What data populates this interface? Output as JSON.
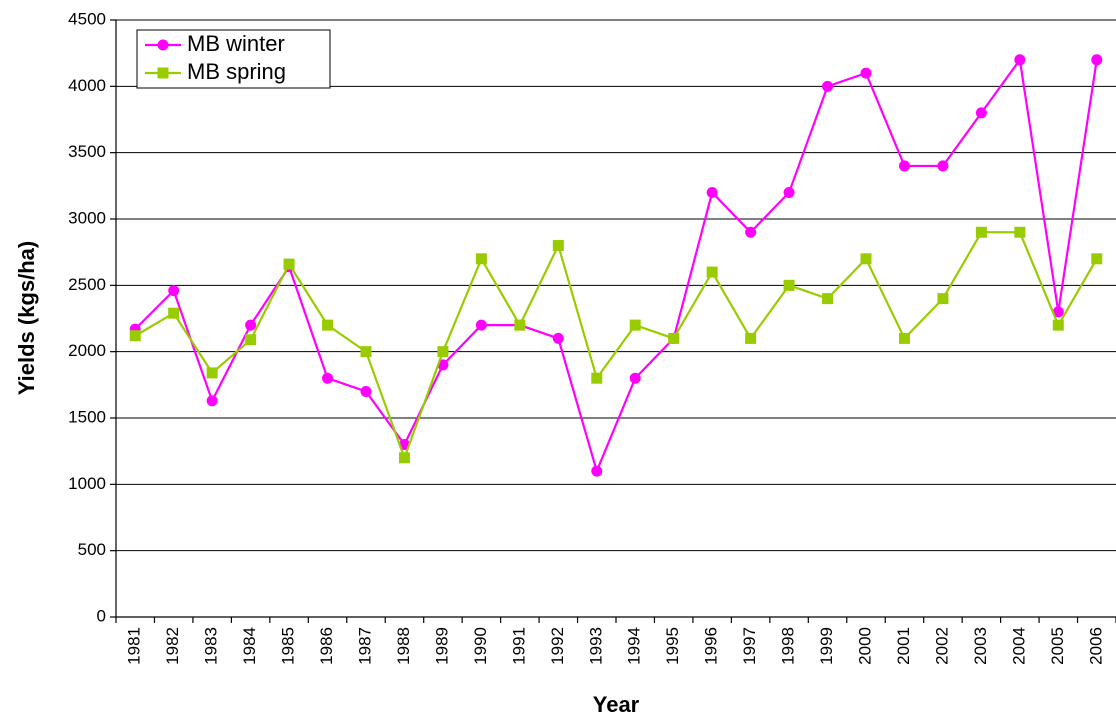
{
  "chart_data": {
    "type": "line",
    "x_label": "Year",
    "y_label": "Yields (kgs/ha)",
    "categories": [
      "1981",
      "1982",
      "1983",
      "1984",
      "1985",
      "1986",
      "1987",
      "1988",
      "1989",
      "1990",
      "1991",
      "1992",
      "1993",
      "1994",
      "1995",
      "1996",
      "1997",
      "1998",
      "1999",
      "2000",
      "2001",
      "2002",
      "2003",
      "2004",
      "2005",
      "2006"
    ],
    "series": [
      {
        "name": "MB winter",
        "color": "#ff00ff",
        "marker": "circle",
        "values": [
          2170,
          2460,
          1630,
          2200,
          2640,
          1800,
          1700,
          1300,
          1900,
          2200,
          2200,
          2100,
          1100,
          1800,
          2100,
          3200,
          2900,
          3200,
          4000,
          4100,
          3400,
          3400,
          3800,
          4200,
          2300,
          4200
        ]
      },
      {
        "name": "MB spring",
        "color": "#99cc00",
        "marker": "square",
        "values": [
          2120,
          2290,
          1840,
          2090,
          2660,
          2200,
          2000,
          1200,
          2000,
          2700,
          2200,
          2800,
          1800,
          2200,
          2100,
          2600,
          2100,
          2500,
          2400,
          2700,
          2100,
          2400,
          2900,
          2900,
          2200,
          2700
        ]
      }
    ],
    "ylim": [
      0,
      4500
    ],
    "yticks": [
      0,
      500,
      1000,
      1500,
      2000,
      2500,
      3000,
      3500,
      4000,
      4500
    ],
    "grid": true,
    "legend": "upper left"
  }
}
